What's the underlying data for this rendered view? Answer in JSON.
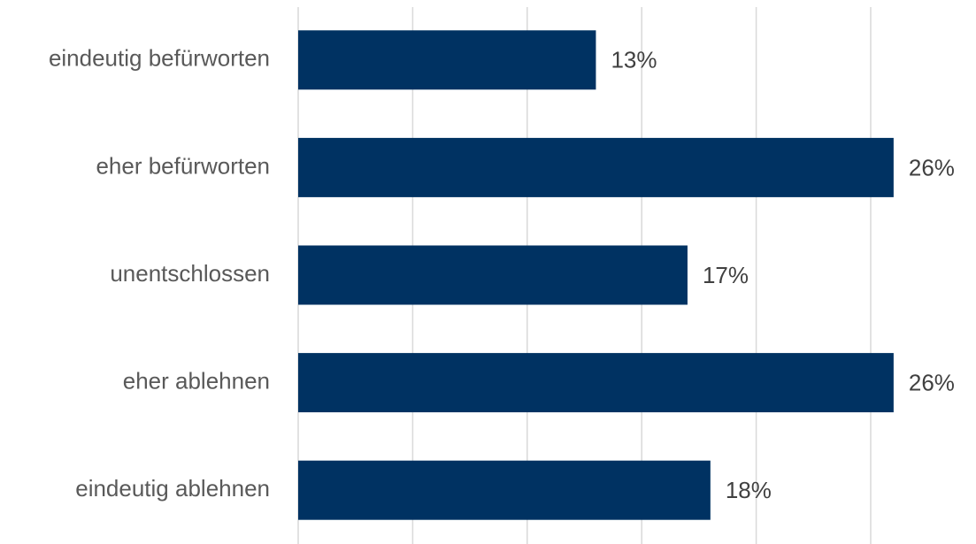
{
  "chart_data": {
    "type": "barh",
    "categories": [
      "eindeutig befürworten",
      "eher befürworten",
      "unentschlossen",
      "eher ablehnen",
      "eindeutig ablehnen"
    ],
    "values": [
      13,
      26,
      17,
      26,
      18
    ],
    "value_labels": [
      "13%",
      "26%",
      "17%",
      "26%",
      "18%"
    ],
    "color": "#003262",
    "xlim": [
      0,
      30
    ],
    "xticks": [
      0,
      5,
      10,
      15,
      20,
      25
    ],
    "grid": true
  }
}
